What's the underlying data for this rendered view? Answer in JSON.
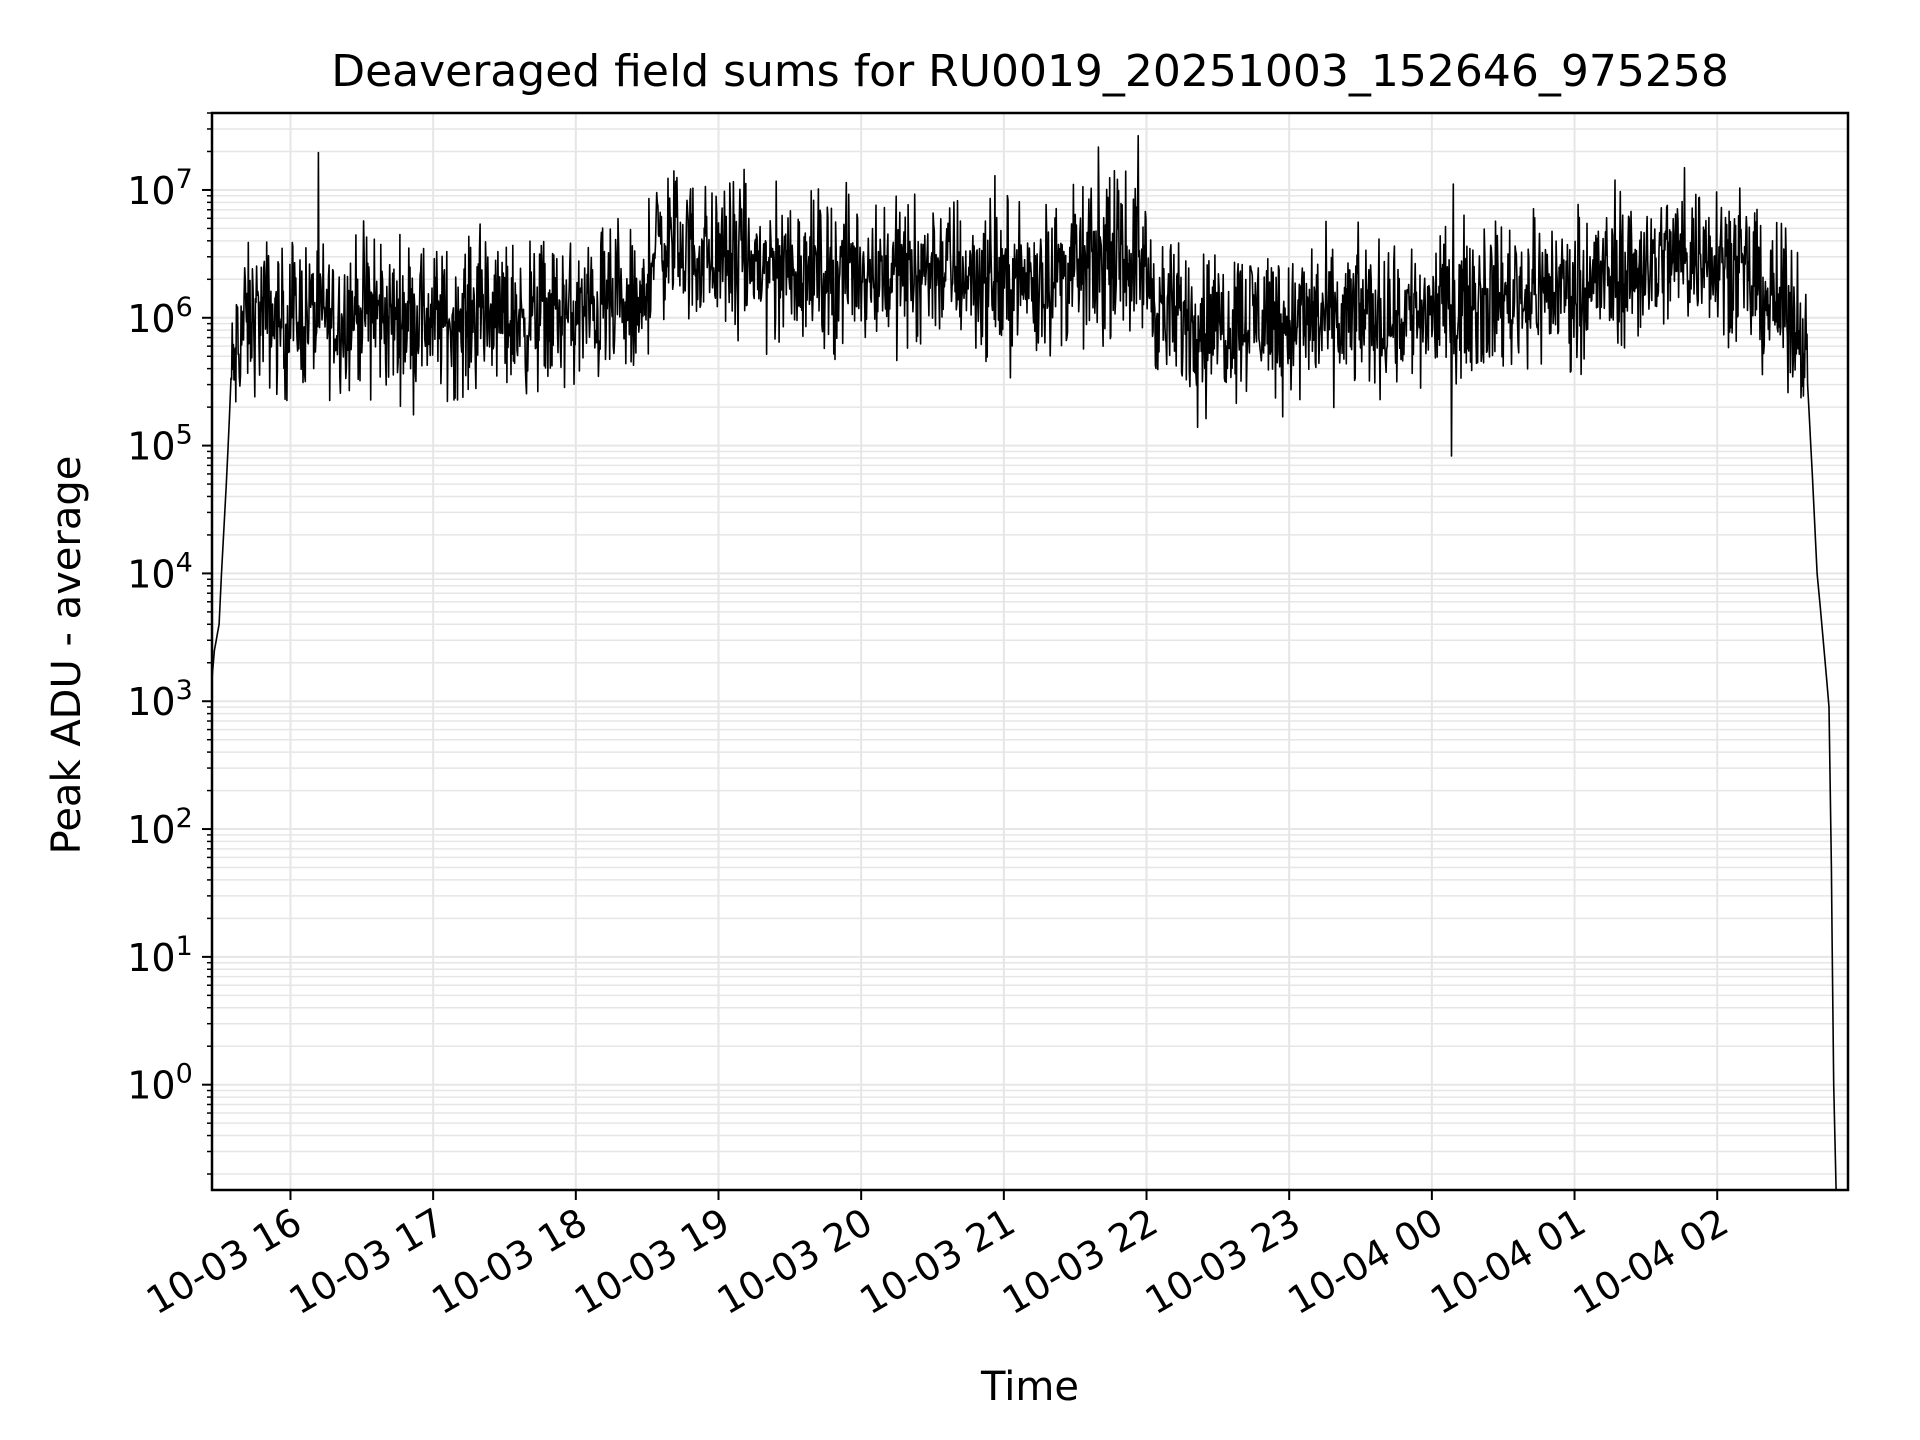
{
  "chart_data": {
    "type": "line",
    "title": "Deaveraged field sums for RU0019_20251003_152646_975258",
    "xlabel": "Time",
    "ylabel": "Peak ADU - average",
    "yscale": "log",
    "grid": true,
    "line_color": "#000000",
    "grid_color": "#e6e6e6",
    "x_ticks": [
      "10-03 16",
      "10-03 17",
      "10-03 18",
      "10-03 19",
      "10-03 20",
      "10-03 21",
      "10-03 22",
      "10-03 23",
      "10-04 00",
      "10-04 01",
      "10-04 02"
    ],
    "y_ticks": [
      {
        "base": "10",
        "exp": "0"
      },
      {
        "base": "10",
        "exp": "1"
      },
      {
        "base": "10",
        "exp": "2"
      },
      {
        "base": "10",
        "exp": "3"
      },
      {
        "base": "10",
        "exp": "4"
      },
      {
        "base": "10",
        "exp": "5"
      },
      {
        "base": "10",
        "exp": "6"
      },
      {
        "base": "10",
        "exp": "7"
      }
    ],
    "xlim": [
      "2025-10-03 15:27",
      "2025-10-04 02:55"
    ],
    "ylim": [
      0.15,
      40000000
    ],
    "series": [
      {
        "x": [
          "2025-10-03 15:27",
          "2025-10-03 15:28",
          "2025-10-03 15:30",
          "2025-10-03 15:31",
          "2025-10-03 15:33",
          "2025-10-03 15:35",
          "2025-10-03 15:37",
          "2025-10-03 15:40",
          "2025-10-03 15:45",
          "2025-10-03 15:50",
          "2025-10-03 15:55",
          "2025-10-03 16:00",
          "2025-10-03 16:10",
          "2025-10-03 16:20",
          "2025-10-03 16:30",
          "2025-10-03 16:40",
          "2025-10-03 16:50",
          "2025-10-03 17:00",
          "2025-10-03 17:10",
          "2025-10-03 17:20",
          "2025-10-03 17:30",
          "2025-10-03 17:40",
          "2025-10-03 17:50",
          "2025-10-03 18:00",
          "2025-10-03 18:10",
          "2025-10-03 18:20",
          "2025-10-03 18:28",
          "2025-10-03 18:32",
          "2025-10-03 18:40",
          "2025-10-03 18:50",
          "2025-10-03 19:00",
          "2025-10-03 19:10",
          "2025-10-03 19:20",
          "2025-10-03 19:30",
          "2025-10-03 19:40",
          "2025-10-03 19:50",
          "2025-10-03 20:00",
          "2025-10-03 20:10",
          "2025-10-03 20:20",
          "2025-10-03 20:30",
          "2025-10-03 20:40",
          "2025-10-03 20:50",
          "2025-10-03 21:00",
          "2025-10-03 21:10",
          "2025-10-03 21:20",
          "2025-10-03 21:30",
          "2025-10-03 21:40",
          "2025-10-03 21:50",
          "2025-10-03 21:58",
          "2025-10-03 22:05",
          "2025-10-03 22:10",
          "2025-10-03 22:20",
          "2025-10-03 22:30",
          "2025-10-03 22:40",
          "2025-10-03 22:50",
          "2025-10-03 23:00",
          "2025-10-03 23:10",
          "2025-10-03 23:20",
          "2025-10-03 23:30",
          "2025-10-03 23:40",
          "2025-10-03 23:50",
          "2025-10-04 00:00",
          "2025-10-04 00:10",
          "2025-10-04 00:20",
          "2025-10-04 00:30",
          "2025-10-04 00:40",
          "2025-10-04 00:50",
          "2025-10-04 01:00",
          "2025-10-04 01:10",
          "2025-10-04 01:20",
          "2025-10-04 01:30",
          "2025-10-04 01:40",
          "2025-10-04 01:50",
          "2025-10-04 02:00",
          "2025-10-04 02:10",
          "2025-10-04 02:20",
          "2025-10-04 02:30",
          "2025-10-04 02:36",
          "2025-10-04 02:38",
          "2025-10-04 02:40",
          "2025-10-04 02:42",
          "2025-10-04 02:44",
          "2025-10-04 02:46",
          "2025-10-04 02:47",
          "2025-10-04 02:48",
          "2025-10-04 02:49",
          "2025-10-04 02:50"
        ],
        "y": [
          1500,
          2500,
          4000,
          10000,
          50000,
          300000,
          500000,
          900000,
          1000000,
          1100000,
          900000,
          1000000,
          1100000,
          1000000,
          1200000,
          950000,
          1100000,
          1000000,
          900000,
          1100000,
          1000000,
          1000000,
          1100000,
          1000000,
          1200000,
          1100000,
          1000000,
          3500000,
          4000000,
          3200000,
          3000000,
          2800000,
          2500000,
          2600000,
          2400000,
          2300000,
          2500000,
          2400000,
          2200000,
          2600000,
          2400000,
          2000000,
          1800000,
          2000000,
          2200000,
          2400000,
          2600000,
          3000000,
          2800000,
          1200000,
          1000000,
          1000000,
          900000,
          1000000,
          1100000,
          900000,
          1000000,
          900000,
          1100000,
          1000000,
          1100000,
          1200000,
          1300000,
          1400000,
          1500000,
          1600000,
          1700000,
          1800000,
          2000000,
          2200000,
          2500000,
          3000000,
          3200000,
          3500000,
          2200000,
          1500000,
          1100000,
          900000,
          300000,
          60000,
          10000,
          4000,
          1500,
          900,
          50,
          1,
          0.15
        ]
      }
    ]
  }
}
